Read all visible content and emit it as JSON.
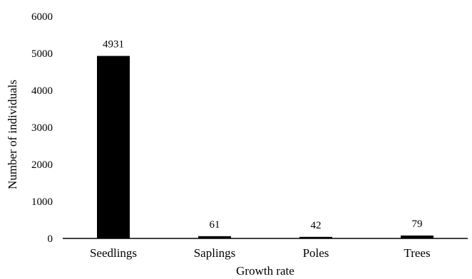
{
  "chart_data": {
    "type": "bar",
    "title": "",
    "xlabel": "Growth rate",
    "ylabel": "Number of individuals",
    "categories": [
      "Seedlings",
      "Saplings",
      "Poles",
      "Trees"
    ],
    "values": [
      4931,
      61,
      42,
      79
    ],
    "data_labels": [
      "4931",
      "61",
      "42",
      "79"
    ],
    "ylim": [
      0,
      6000
    ],
    "yticks": [
      "0",
      "1000",
      "2000",
      "3000",
      "4000",
      "5000",
      "6000"
    ],
    "grid": false,
    "legend": "none",
    "bar_color": "#000000"
  }
}
